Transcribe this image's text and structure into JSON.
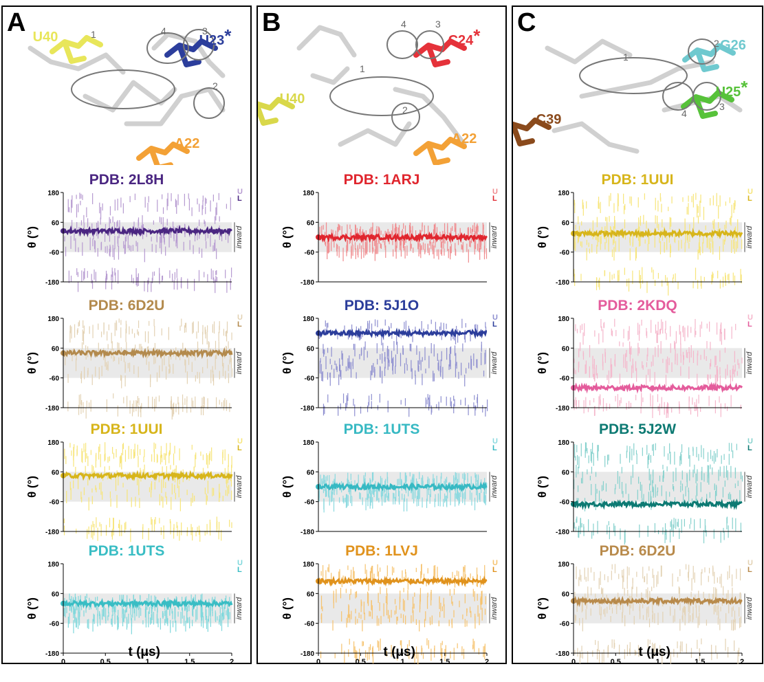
{
  "panels": [
    {
      "letter": "A",
      "structure": {
        "residues": [
          {
            "label": "U40",
            "color": "#e8e65a"
          },
          {
            "label": "U23",
            "star": "*",
            "color": "#2c3e9c"
          },
          {
            "label": "A22",
            "color": "#f3a136"
          }
        ],
        "circle_numbers": [
          "1",
          "2",
          "3",
          "4"
        ]
      },
      "plots": [
        {
          "title": "PDB: 2L8H",
          "color_light": "#b79bd1",
          "color_dark": "#4a2681",
          "level_dark": 25,
          "band": "mixed"
        },
        {
          "title": "PDB: 6D2U",
          "color_light": "#e3d2b4",
          "color_dark": "#b38a4d",
          "level_dark": 40,
          "band": "mixed"
        },
        {
          "title": "PDB: 1UUI",
          "color_light": "#f7e57a",
          "color_dark": "#d7b51b",
          "level_dark": 45,
          "band": "mixed"
        },
        {
          "title": "PDB: 1UTS",
          "color_light": "#7fd8dc",
          "color_dark": "#39bdc4",
          "level_dark": 20,
          "band": "single"
        }
      ],
      "xlabel": "t (μs)"
    },
    {
      "letter": "B",
      "structure": {
        "residues": [
          {
            "label": "C24",
            "star": "*",
            "color": "#e5323a"
          },
          {
            "label": "U40",
            "color": "#d9d84a"
          },
          {
            "label": "A22",
            "color": "#f3a136"
          }
        ],
        "circle_numbers": [
          "1",
          "2",
          "3",
          "4"
        ]
      },
      "plots": [
        {
          "title": "PDB: 1ARJ",
          "color_light": "#f08b8e",
          "color_dark": "#e0262e",
          "level_dark": 0,
          "band": "single"
        },
        {
          "title": "PDB: 5J1O",
          "color_light": "#8e8fd0",
          "color_dark": "#2b3d9b",
          "level_dark": 120,
          "band": "mixed"
        },
        {
          "title": "PDB: 1UTS",
          "color_light": "#8ad9df",
          "color_dark": "#37b9c3",
          "level_dark": 0,
          "band": "single"
        },
        {
          "title": "PDB: 1LVJ",
          "color_light": "#f6c36f",
          "color_dark": "#e0921c",
          "level_dark": 110,
          "band": "mixed"
        }
      ],
      "xlabel": "t (μs)"
    },
    {
      "letter": "C",
      "structure": {
        "residues": [
          {
            "label": "G26",
            "color": "#6fc9cf"
          },
          {
            "label": "U25",
            "star": "*",
            "color": "#57c23a"
          },
          {
            "label": "C39",
            "color": "#8a4a1c"
          }
        ],
        "circle_numbers": [
          "1",
          "2",
          "3",
          "4"
        ]
      },
      "plots": [
        {
          "title": "PDB: 1UUI",
          "color_light": "#f7e57a",
          "color_dark": "#d7b51b",
          "level_dark": 15,
          "band": "mixed"
        },
        {
          "title": "PDB: 2KDQ",
          "color_light": "#f5b6cb",
          "color_dark": "#e45c9c",
          "level_dark": -100,
          "band": "mixed"
        },
        {
          "title": "PDB: 5J2W",
          "color_light": "#86d1cd",
          "color_dark": "#0d7a73",
          "level_dark": -70,
          "band": "mixed"
        },
        {
          "title": "PDB: 6D2U",
          "color_light": "#e3d2b4",
          "color_dark": "#b88a4b",
          "level_dark": 30,
          "band": "mixed"
        }
      ],
      "xlabel": "t (μs)"
    }
  ],
  "axis": {
    "ylabel": "θ (°)",
    "yticks": [
      "180",
      "60",
      "-60",
      "-180"
    ],
    "xticks": [
      "0",
      "0.5",
      "1",
      "1.5",
      "2"
    ],
    "band_label": "inward",
    "legend_upper": "U",
    "legend_lower": "L"
  },
  "chart_data": {
    "type": "scatter",
    "ylim": [
      -180,
      180
    ],
    "xlim": [
      0,
      2
    ],
    "ylabel": "θ (°)",
    "xlabel": "t (μs)",
    "shaded_band": [
      -60,
      60
    ],
    "series_by_plot": [
      "PDB: 2L8H",
      "PDB: 6D2U",
      "PDB: 1UUI",
      "PDB: 1UTS",
      "PDB: 1ARJ",
      "PDB: 5J1O",
      "PDB: 1UTS",
      "PDB: 1LVJ",
      "PDB: 1UUI",
      "PDB: 2KDQ",
      "PDB: 5J2W",
      "PDB: 6D2U"
    ],
    "legend": [
      "U",
      "L"
    ]
  }
}
